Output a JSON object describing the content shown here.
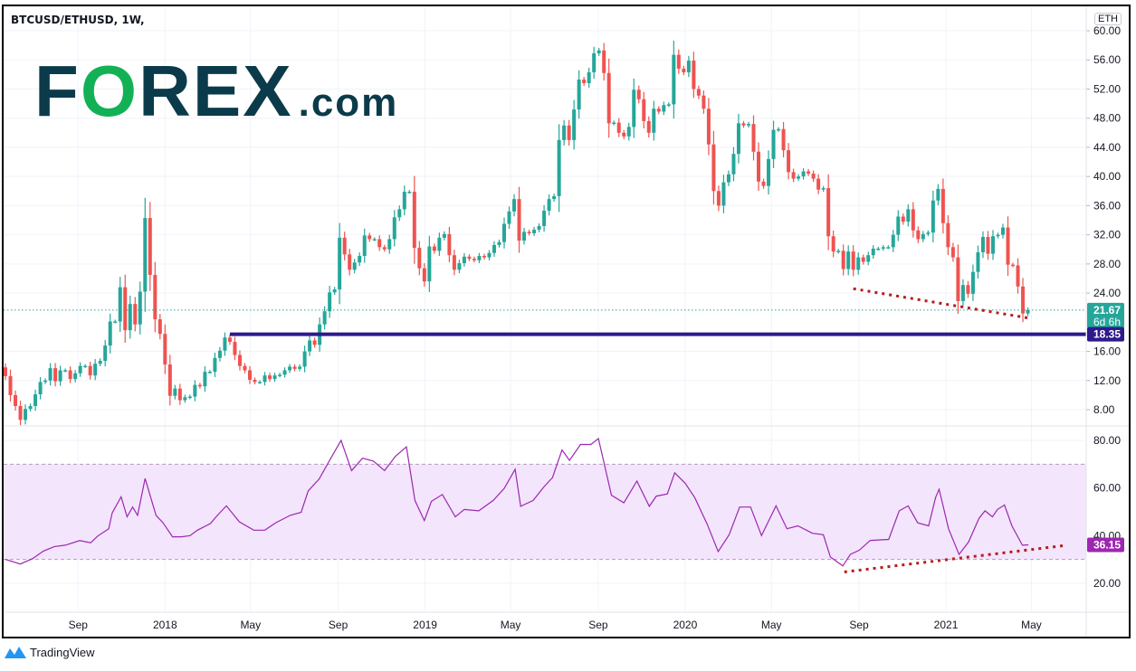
{
  "header": {
    "symbol_title": "BTCUSD/ETHUSD, 1W,",
    "currency_badge": "ETH"
  },
  "logo": {
    "brand": "F",
    "brand_o": "O",
    "brand_rest": "REX",
    "suffix": ".com"
  },
  "footer": {
    "brand": "TradingView"
  },
  "colors": {
    "up": "#26a69a",
    "down": "#ef5350",
    "level_line": "#2e1a8c",
    "rsi_line": "#9c27b0",
    "rsi_band": "#f3e5fc",
    "trendline": "#b71c1c",
    "logo_dark": "#0b3b4b",
    "logo_green": "#13b155"
  },
  "chart_data": [
    {
      "type": "candlestick",
      "interval": "1W",
      "first_bar": "2017-05-22",
      "ylim": [
        6,
        62
      ],
      "y_ticks": [
        "60.00",
        "56.00",
        "52.00",
        "48.00",
        "44.00",
        "40.00",
        "36.00",
        "32.00",
        "28.00",
        "24.00",
        "16.00",
        "12.00",
        "8.00"
      ],
      "grid": true,
      "close": [
        12.6,
        10.0,
        8.5,
        6.6,
        8.1,
        8.5,
        10.1,
        11.8,
        12.0,
        13.7,
        11.9,
        13.4,
        13.4,
        12.2,
        13.0,
        14.0,
        14.0,
        12.7,
        14.3,
        14.7,
        16.8,
        20.1,
        20.1,
        24.8,
        18.9,
        22.5,
        19.7,
        24.2,
        34.3,
        26.5,
        20.4,
        18.4,
        14.2,
        9.9,
        10.9,
        9.3,
        9.7,
        9.8,
        11.4,
        11.2,
        13.2,
        13.2,
        15.1,
        16.1,
        17.9,
        17.3,
        15.5,
        14.0,
        13.4,
        12.1,
        11.8,
        11.8,
        12.7,
        12.2,
        12.7,
        12.8,
        13.4,
        13.9,
        13.6,
        13.9,
        16.0,
        17.5,
        16.9,
        19.7,
        21.5,
        24.1,
        24.5,
        31.6,
        29.3,
        27.2,
        28.2,
        29.1,
        31.9,
        31.4,
        31.4,
        30.3,
        30.0,
        31.4,
        34.4,
        35.5,
        37.9,
        37.9,
        30.2,
        27.4,
        25.6,
        30.4,
        29.8,
        31.6,
        32.1,
        29.2,
        27.2,
        28.1,
        29.0,
        28.7,
        28.5,
        29.1,
        28.9,
        29.5,
        30.6,
        31.0,
        33.5,
        35.2,
        36.9,
        31.2,
        32.4,
        32.2,
        32.7,
        33.2,
        35.3,
        36.9,
        37.3,
        45.0,
        47.0,
        45.0,
        49.2,
        53.3,
        52.8,
        54.3,
        56.9,
        57.3,
        54.2,
        47.3,
        47.4,
        46.0,
        45.5,
        46.8,
        51.9,
        50.6,
        47.6,
        46.0,
        49.3,
        48.9,
        49.8,
        49.9,
        56.7,
        54.8,
        54.3,
        55.9,
        52.0,
        51.1,
        49.3,
        44.4,
        38.0,
        36.0,
        39.2,
        40.3,
        43.1,
        47.3,
        47.0,
        47.2,
        43.4,
        39.3,
        38.7,
        42.4,
        46.4,
        46.5,
        43.6,
        40.6,
        39.7,
        40.0,
        40.7,
        40.4,
        39.7,
        38.2,
        38.4,
        31.8,
        29.7,
        29.8,
        27.3,
        29.7,
        27.2,
        28.9,
        28.3,
        29.2,
        30.1,
        30.1,
        30.3,
        30.3,
        32.0,
        34.5,
        33.8,
        35.5,
        32.6,
        31.4,
        32.1,
        32.3,
        36.7,
        38.3,
        33.6,
        30.3,
        28.9,
        22.9,
        25.1,
        23.9,
        26.9,
        29.6,
        31.7,
        29.4,
        31.8,
        32.0,
        33.0,
        27.9,
        27.8,
        24.9,
        21.2,
        21.67
      ],
      "last_price": {
        "value": "21.67",
        "countdown": "6d 6h"
      },
      "horizontal_level": {
        "value": 18.35,
        "label": "18.35",
        "from_bar": 45
      },
      "trendline": {
        "from": {
          "bar": 170,
          "value": 24.6
        },
        "to": {
          "bar": 205.8,
          "value": 20.5
        }
      }
    },
    {
      "type": "line",
      "indicator": "RSI",
      "ylim": [
        10,
        85
      ],
      "y_ticks": [
        "80.00",
        "60.00",
        "40.00",
        "20.00"
      ],
      "band": [
        30,
        70
      ],
      "last_value": "36.15",
      "points": [
        [
          0,
          30
        ],
        [
          3,
          28.1
        ],
        [
          5.5,
          30.4
        ],
        [
          7.6,
          33.5
        ],
        [
          9.8,
          35.4
        ],
        [
          12,
          36
        ],
        [
          14.9,
          37.9
        ],
        [
          17.1,
          37
        ],
        [
          18.5,
          39.8
        ],
        [
          20.7,
          42.9
        ],
        [
          21.4,
          49.5
        ],
        [
          23.2,
          56.3
        ],
        [
          24.4,
          47.9
        ],
        [
          25.5,
          52
        ],
        [
          26.5,
          48.5
        ],
        [
          28,
          64
        ],
        [
          30.2,
          48.5
        ],
        [
          31.6,
          45.4
        ],
        [
          33.5,
          39.5
        ],
        [
          35.3,
          39.5
        ],
        [
          37,
          40
        ],
        [
          38.5,
          42.3
        ],
        [
          41.1,
          45.1
        ],
        [
          42.5,
          48.5
        ],
        [
          44.3,
          52.5
        ],
        [
          46.9,
          45.8
        ],
        [
          49.8,
          42.3
        ],
        [
          52,
          42.3
        ],
        [
          54.2,
          45.4
        ],
        [
          57.1,
          48.5
        ],
        [
          59.3,
          49.8
        ],
        [
          60.7,
          58.8
        ],
        [
          62.9,
          63.8
        ],
        [
          65.1,
          72
        ],
        [
          67.3,
          80
        ],
        [
          69.4,
          67.3
        ],
        [
          71.6,
          72.5
        ],
        [
          73.8,
          71.3
        ],
        [
          76,
          67.3
        ],
        [
          78.2,
          73.3
        ],
        [
          80.4,
          77.3
        ],
        [
          82.1,
          54.8
        ],
        [
          84,
          46.3
        ],
        [
          85.4,
          54.4
        ],
        [
          87.6,
          57.3
        ],
        [
          90.2,
          47.9
        ],
        [
          92,
          51
        ],
        [
          94.9,
          50.4
        ],
        [
          97.8,
          54.8
        ],
        [
          100,
          59.8
        ],
        [
          102.2,
          67.9
        ],
        [
          103.3,
          52.3
        ],
        [
          105.8,
          54.8
        ],
        [
          108,
          60.6
        ],
        [
          109.7,
          64.4
        ],
        [
          111.6,
          76
        ],
        [
          113.1,
          71.6
        ],
        [
          115.3,
          78.3
        ],
        [
          117.4,
          78.3
        ],
        [
          118.9,
          80.8
        ],
        [
          121.5,
          57
        ],
        [
          124,
          53.8
        ],
        [
          126.6,
          62.9
        ],
        [
          129.1,
          52.3
        ],
        [
          130.5,
          56.6
        ],
        [
          132.7,
          57.5
        ],
        [
          134.2,
          66.4
        ],
        [
          136.3,
          62
        ],
        [
          138.2,
          56
        ],
        [
          140.7,
          44.8
        ],
        [
          142.9,
          33.3
        ],
        [
          145.1,
          40.4
        ],
        [
          147.2,
          52
        ],
        [
          149.4,
          52
        ],
        [
          151.6,
          40
        ],
        [
          154.5,
          52.5
        ],
        [
          156.7,
          42.9
        ],
        [
          158.9,
          44.1
        ],
        [
          161.8,
          41
        ],
        [
          164,
          40.4
        ],
        [
          165.4,
          31
        ],
        [
          167.9,
          27.3
        ],
        [
          169.4,
          32.1
        ],
        [
          171.2,
          33.9
        ],
        [
          173.4,
          38
        ],
        [
          177.1,
          38.4
        ],
        [
          179.2,
          50.4
        ],
        [
          181,
          52.5
        ],
        [
          182.9,
          45.4
        ],
        [
          185.1,
          44.1
        ],
        [
          186.5,
          56
        ],
        [
          187.2,
          59.5
        ],
        [
          189.1,
          42.9
        ],
        [
          191.2,
          32.1
        ],
        [
          193.1,
          37.3
        ],
        [
          195.2,
          47.3
        ],
        [
          196.4,
          50.4
        ],
        [
          197.9,
          47.9
        ],
        [
          198.9,
          51
        ],
        [
          200.3,
          52.9
        ],
        [
          201.8,
          44.1
        ],
        [
          203.9,
          36
        ],
        [
          205.1,
          36.15
        ]
      ],
      "trendline": {
        "from": {
          "bar": 168.2,
          "value": 24.75
        },
        "to": {
          "bar": 212,
          "value": 35.75
        }
      }
    }
  ],
  "x_ticks": [
    {
      "label": "Sep",
      "date": "2017-09-01"
    },
    {
      "label": "2018",
      "date": "2018-01-01"
    },
    {
      "label": "May",
      "date": "2018-05-01"
    },
    {
      "label": "Sep",
      "date": "2018-09-01"
    },
    {
      "label": "2019",
      "date": "2019-01-01"
    },
    {
      "label": "May",
      "date": "2019-05-01"
    },
    {
      "label": "Sep",
      "date": "2019-09-01"
    },
    {
      "label": "2020",
      "date": "2020-01-01"
    },
    {
      "label": "May",
      "date": "2020-05-01"
    },
    {
      "label": "Sep",
      "date": "2020-09-01"
    },
    {
      "label": "2021",
      "date": "2021-01-01"
    },
    {
      "label": "May",
      "date": "2021-05-01"
    }
  ]
}
